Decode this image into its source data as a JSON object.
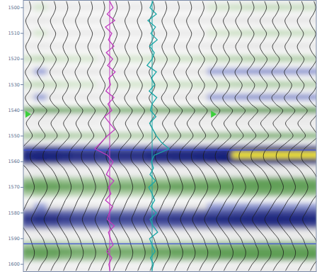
{
  "chart_data": {
    "type": "seismic",
    "ylim": [
      1497,
      1603
    ],
    "yticks": [
      1500,
      1510,
      1520,
      1530,
      1540,
      1550,
      1560,
      1570,
      1580,
      1590,
      1600
    ],
    "times": [
      1497.5,
      1500,
      1502.5,
      1505,
      1507.5,
      1510,
      1512.5,
      1515,
      1517.5,
      1520,
      1522.5,
      1525,
      1527.5,
      1530,
      1532.5,
      1535,
      1537.5,
      1540,
      1542.5,
      1545,
      1547.5,
      1550,
      1552.5,
      1555,
      1557.5,
      1560,
      1562.5,
      1565,
      1567.5,
      1570,
      1572.5,
      1575,
      1577.5,
      1580,
      1582.5,
      1585,
      1587.5,
      1590,
      1592.5,
      1595,
      1597.5,
      1600,
      1602.5
    ],
    "amplitude": [
      0.1,
      0.25,
      0.05,
      -0.25,
      -0.05,
      0.25,
      0.05,
      -0.25,
      -0.05,
      0.3,
      0.05,
      -0.3,
      -0.05,
      0.3,
      0.1,
      -0.3,
      0.0,
      0.55,
      0.2,
      -0.2,
      0.1,
      0.4,
      -0.1,
      -0.7,
      -0.95,
      -0.8,
      -0.2,
      0.2,
      0.45,
      0.6,
      0.4,
      0.0,
      -0.3,
      -0.6,
      -0.85,
      -0.6,
      -0.2,
      0.2,
      0.4,
      0.6,
      0.5,
      0.1,
      -0.2
    ],
    "trace_gain": [
      1.1,
      1.2,
      1.15,
      1.05,
      1,
      1,
      0.95,
      1,
      1,
      1,
      1.05,
      1.05,
      1.1,
      1.1,
      1.15,
      1.2,
      1.25,
      1.3,
      1.35,
      1.4,
      1.4,
      1.35,
      1.35,
      1.3
    ],
    "well_logs": [
      {
        "color": "#c03cc0",
        "xlim": [
          0,
          100
        ],
        "values": [
          50,
          58,
          44,
          62,
          40,
          55,
          47,
          60,
          42,
          57,
          45,
          63,
          48,
          52,
          41,
          60,
          46,
          55,
          38,
          50,
          62,
          44,
          30,
          15,
          45,
          58,
          50,
          42,
          60,
          47,
          53,
          40,
          57,
          49,
          44,
          61,
          47,
          52,
          58,
          43,
          55,
          48,
          51
        ]
      },
      {
        "color": "#1aa6a6",
        "xlim": [
          0,
          100
        ],
        "values": [
          52,
          45,
          60,
          40,
          58,
          47,
          62,
          44,
          55,
          50,
          38,
          60,
          48,
          56,
          43,
          61,
          50,
          46,
          59,
          44,
          52,
          60,
          72,
          90,
          55,
          48,
          53,
          45,
          58,
          42,
          50,
          56,
          47,
          60,
          45,
          52,
          63,
          44,
          50,
          57,
          46,
          53,
          49
        ]
      }
    ],
    "horizons": [
      {
        "time": 1555.5,
        "color": "#3a4fd8"
      },
      {
        "time": 1592,
        "color": "#3a4fd8"
      }
    ],
    "well_tops": [
      {
        "time": 1541.5,
        "color": "#3ccf3c",
        "traces": [
          0,
          15
        ]
      }
    ]
  }
}
